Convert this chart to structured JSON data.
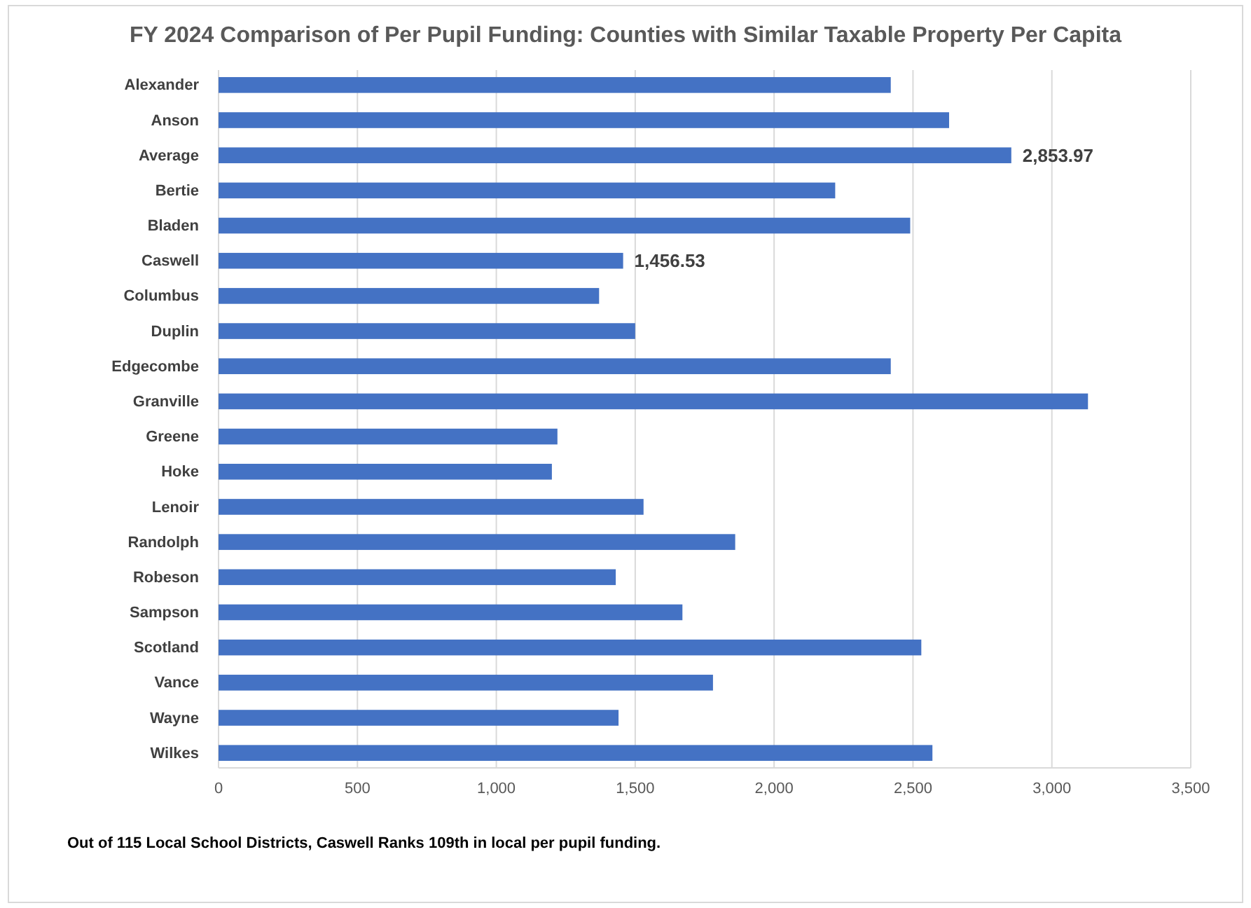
{
  "chart_data": {
    "type": "bar",
    "orientation": "horizontal",
    "title": "FY 2024 Comparison of Per Pupil Funding: Counties with Similar Taxable Property Per Capita",
    "categories": [
      "Alexander",
      "Anson",
      "Average",
      "Bertie",
      "Bladen",
      "Caswell",
      "Columbus",
      "Duplin",
      "Edgecombe",
      "Granville",
      "Greene",
      "Hoke",
      "Lenoir",
      "Randolph",
      "Robeson",
      "Sampson",
      "Scotland",
      "Vance",
      "Wayne",
      "Wilkes"
    ],
    "values": [
      2420,
      2630,
      2853.97,
      2220,
      2490,
      1456.53,
      1370,
      1500,
      2420,
      3130,
      1220,
      1200,
      1530,
      1860,
      1430,
      1670,
      2530,
      1780,
      1440,
      2570
    ],
    "value_labels": [
      null,
      null,
      "2,853.97",
      null,
      null,
      "1,456.53",
      null,
      null,
      null,
      null,
      null,
      null,
      null,
      null,
      null,
      null,
      null,
      null,
      null,
      null
    ],
    "color": "#4472c4",
    "xlim": [
      0,
      3500
    ],
    "xticks": [
      0,
      {
        "value": 500,
        "label": "500"
      },
      {
        "value": 1000,
        "label": "1,000"
      },
      {
        "value": 1500,
        "label": "1,500"
      },
      {
        "value": 2000,
        "label": "2,000"
      },
      {
        "value": 2500,
        "label": "2,500"
      },
      {
        "value": 3000,
        "label": "3,000"
      },
      {
        "value": 3500,
        "label": "3,500"
      }
    ],
    "grid": "x",
    "annotations": [
      "Out of 115 Local School Districts, Caswell Ranks 109th in local per pupil funding."
    ]
  }
}
